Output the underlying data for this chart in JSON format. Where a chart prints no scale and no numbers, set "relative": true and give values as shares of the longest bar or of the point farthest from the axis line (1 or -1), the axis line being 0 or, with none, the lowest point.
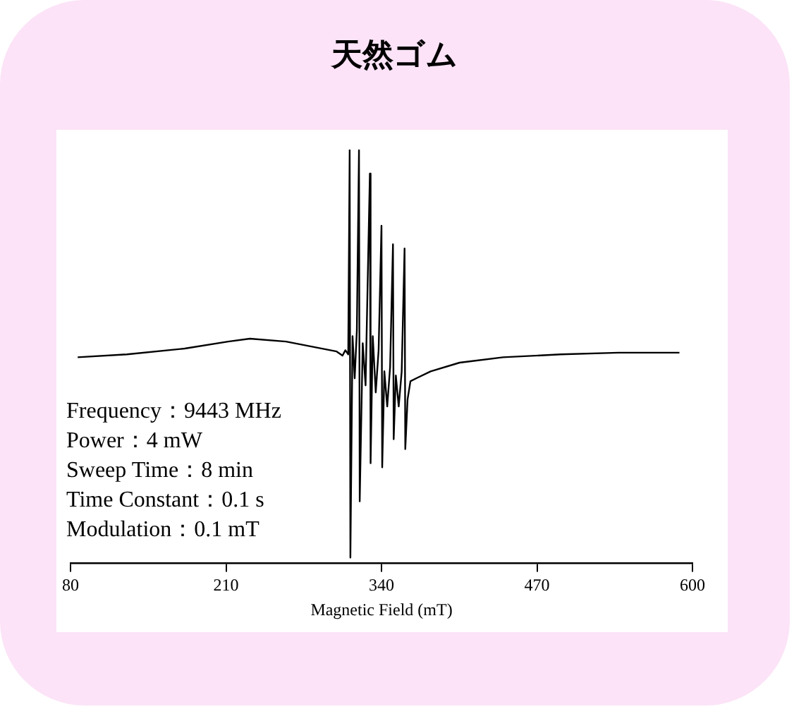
{
  "chart_data": {
    "type": "line",
    "title": "天然ゴム",
    "xlabel": "Magnetic Field (mT)",
    "relative": true,
    "xlim": [
      80,
      600
    ],
    "xticks": [
      80,
      210,
      340,
      470,
      600
    ],
    "tick_labels": "x",
    "grid": false,
    "legend": false,
    "marker": "none",
    "line_style": "solid",
    "annotations": [
      "Frequency：9443 MHz",
      "Power：4 mW",
      "Sweep Time：8 min",
      "Time Constant：0.1 s",
      "Modulation：0.1 mT"
    ],
    "x": [
      86.0,
      127.2,
      175.5,
      211.8,
      230.0,
      260.2,
      290.4,
      302.5,
      307.4,
      309.8,
      312.2,
      313.4,
      314.0,
      315.8,
      317.6,
      319.4,
      321.2,
      321.8,
      324.3,
      326.7,
      330.3,
      330.9,
      332.7,
      335.2,
      337.6,
      340.0,
      340.6,
      342.4,
      344.8,
      347.2,
      349.6,
      350.2,
      352.0,
      354.4,
      356.9,
      359.3,
      359.9,
      361.8,
      364.2,
      369.0,
      381.1,
      405.3,
      441.6,
      490.0,
      538.3,
      589.1
    ],
    "series": [
      {
        "color": "#000000",
        "values": [
          0.498,
          0.505,
          0.519,
          0.536,
          0.543,
          0.536,
          0.519,
          0.512,
          0.502,
          0.515,
          0.505,
          1.0,
          0.014,
          0.549,
          0.447,
          0.563,
          1.0,
          0.15,
          0.532,
          0.43,
          0.942,
          0.242,
          0.549,
          0.413,
          0.515,
          0.816,
          0.232,
          0.464,
          0.379,
          0.474,
          0.771,
          0.3,
          0.454,
          0.379,
          0.464,
          0.761,
          0.276,
          0.396,
          0.44,
          0.447,
          0.464,
          0.485,
          0.498,
          0.505,
          0.509,
          0.509
        ]
      }
    ]
  }
}
